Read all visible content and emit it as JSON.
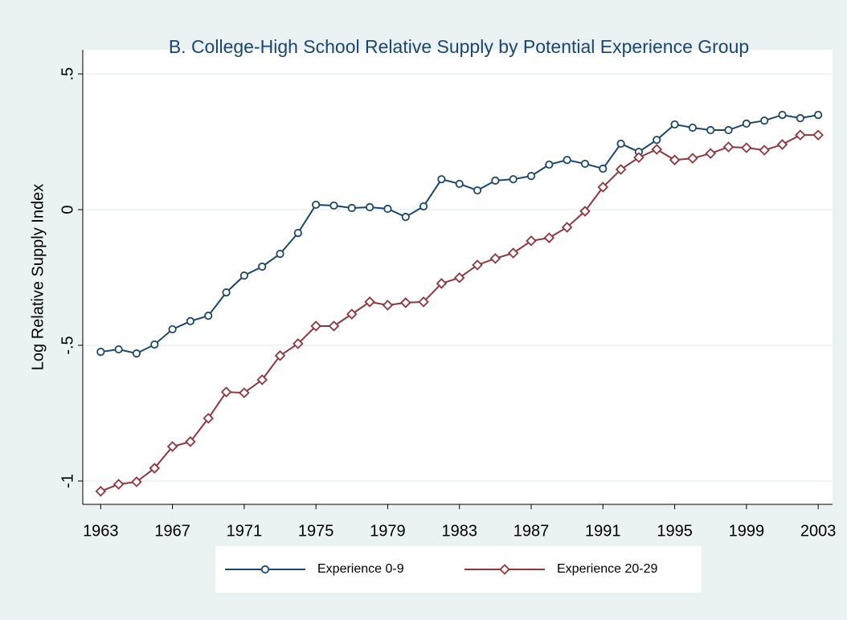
{
  "chart_data": {
    "type": "line",
    "title": "B. College-High School Relative Supply by Potential Experience Group",
    "y_label": "Log Relative Supply Index",
    "x": [
      1963,
      1964,
      1965,
      1966,
      1967,
      1968,
      1969,
      1970,
      1971,
      1972,
      1973,
      1974,
      1975,
      1976,
      1977,
      1978,
      1979,
      1980,
      1981,
      1982,
      1983,
      1984,
      1985,
      1986,
      1987,
      1988,
      1989,
      1990,
      1991,
      1992,
      1993,
      1994,
      1995,
      1996,
      1997,
      1998,
      1999,
      2000,
      2001,
      2002,
      2003
    ],
    "series": [
      {
        "name": "Experience 0-9",
        "color": "#1a476f",
        "marker": "circle",
        "values": [
          -0.524,
          -0.515,
          -0.53,
          -0.497,
          -0.441,
          -0.411,
          -0.391,
          -0.305,
          -0.243,
          -0.21,
          -0.163,
          -0.086,
          0.018,
          0.015,
          0.006,
          0.009,
          0.003,
          -0.027,
          0.012,
          0.112,
          0.095,
          0.071,
          0.107,
          0.112,
          0.124,
          0.166,
          0.183,
          0.169,
          0.151,
          0.243,
          0.213,
          0.257,
          0.314,
          0.302,
          0.293,
          0.293,
          0.317,
          0.328,
          0.349,
          0.337,
          0.349
        ]
      },
      {
        "name": "Experience 20-29",
        "color": "#90353b",
        "marker": "diamond",
        "values": [
          -1.038,
          -1.012,
          -1.003,
          -0.953,
          -0.873,
          -0.855,
          -0.769,
          -0.672,
          -0.675,
          -0.627,
          -0.538,
          -0.494,
          -0.429,
          -0.429,
          -0.385,
          -0.34,
          -0.352,
          -0.343,
          -0.34,
          -0.272,
          -0.251,
          -0.204,
          -0.18,
          -0.16,
          -0.115,
          -0.104,
          -0.065,
          -0.006,
          0.083,
          0.148,
          0.192,
          0.222,
          0.183,
          0.189,
          0.207,
          0.231,
          0.228,
          0.219,
          0.24,
          0.275,
          0.275
        ]
      }
    ],
    "xlim": [
      1962.0,
      2003.8
    ],
    "xticks": [
      1963,
      1967,
      1971,
      1975,
      1979,
      1983,
      1987,
      1991,
      1995,
      1999,
      2003
    ],
    "ylim": [
      -1.086,
      0.589
    ],
    "yticks": [
      {
        "value": -1,
        "label": "-1"
      },
      {
        "value": -0.5,
        "label": "-.5"
      },
      0,
      {
        "value": 0.5,
        "label": ".5"
      }
    ],
    "grid": true,
    "legend": "bottom"
  }
}
